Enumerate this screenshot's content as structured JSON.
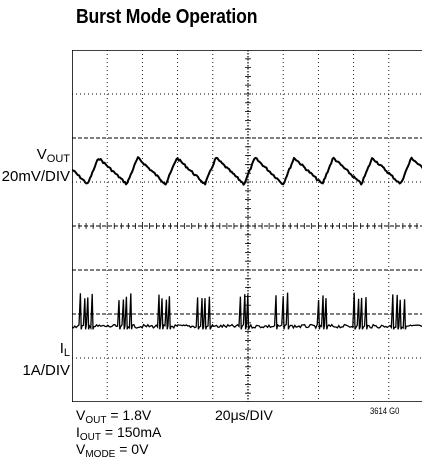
{
  "title": "Burst Mode Operation",
  "channels": {
    "vout": {
      "main": "V",
      "sub": "OUT",
      "scale": "20mV/DIV"
    },
    "il": {
      "main": "I",
      "sub": "L",
      "scale": "1A/DIV"
    }
  },
  "conditions": {
    "vout_main": "V",
    "vout_sub": "OUT",
    "vout_value": " = 1.8V",
    "iout_main": "I",
    "iout_sub": "OUT",
    "iout_value": " = 150mA",
    "vmode_main": "V",
    "vmode_sub": "MODE",
    "vmode_value": " = 0V",
    "timebase": "20μs/DIV",
    "figure_id": "3614 G0"
  },
  "chart_data": {
    "type": "line",
    "title": "Burst Mode Operation",
    "xlabel": "20μs/DIV",
    "grid": true,
    "x_divisions": 10,
    "y_divisions": 8,
    "series": [
      {
        "name": "VOUT",
        "scale": "20mV/DIV",
        "shape": "sawtooth ripple",
        "ripple_peak_to_peak_div": 0.6,
        "cycles_in_window": 9,
        "ripple_peak_to_peak_mV": 12
      },
      {
        "name": "IL",
        "scale": "1A/DIV",
        "shape": "burst pulses",
        "bursts_in_window": 9,
        "pulses_per_burst": 4,
        "pulse_peak_A": 0.7,
        "baseline_A": 0
      }
    ]
  }
}
